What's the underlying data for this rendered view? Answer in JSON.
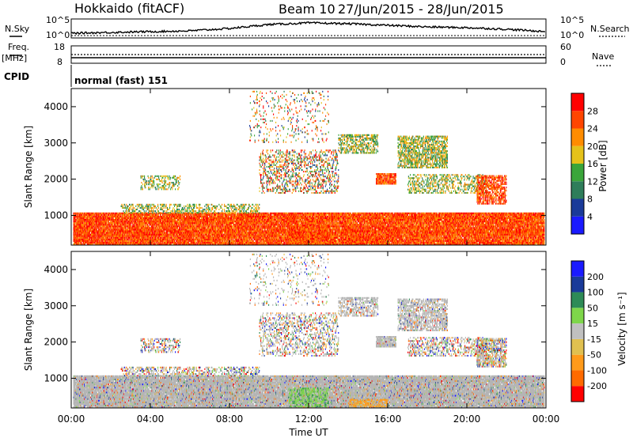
{
  "header": {
    "station": "Hokkaido (fitACF)",
    "beam": "Beam 10",
    "date_range": "27/Jun/2015 - 28/Jun/2015"
  },
  "labels": {
    "nsky": "N.Sky",
    "nsearch": "N.Search",
    "freq": "Freq.",
    "mhz": "[MHz]",
    "nave": "Nave",
    "cpid": "CPID",
    "cpid_value": "normal (fast) 151",
    "ylabel": "Slant Range [km]",
    "xlabel": "Time UT",
    "power_label": "Power [dB]",
    "velocity_label": "Velocity [m s⁻¹]"
  },
  "ticks": {
    "nsky_top": "10^5",
    "nsky_bottom": "10^0",
    "nsearch_top": "10^5",
    "nsearch_bottom": "10^0",
    "freq_top": "18",
    "freq_bottom": "8",
    "nave_top": "60",
    "nave_bottom": "0",
    "time": [
      "00:00",
      "04:00",
      "08:00",
      "12:00",
      "16:00",
      "20:00",
      "00:00"
    ],
    "range": [
      "1000",
      "2000",
      "3000",
      "4000"
    ]
  },
  "colors": {
    "power": [
      "#1a1aff",
      "#1a3a99",
      "#2e7d5a",
      "#3aa53a",
      "#e5c21a",
      "#ff8c00",
      "#ff4500",
      "#ff0000"
    ],
    "velocity": [
      "#ff0000",
      "#ff6a00",
      "#ff9a1a",
      "#e0c050",
      "#c0c0c0",
      "#7ed64a",
      "#2e8b57",
      "#1a3a99",
      "#1a1aff"
    ],
    "ground_scatter": "#b4b4b4"
  },
  "chart_data": {
    "type": "heatmap",
    "x_axis": {
      "label": "Time UT",
      "range_hours": [
        0,
        24
      ],
      "ticks": [
        "00:00",
        "04:00",
        "08:00",
        "12:00",
        "16:00",
        "20:00",
        "00:00"
      ]
    },
    "y_axis": {
      "label": "Slant Range [km]",
      "range_km": [
        180,
        4500
      ],
      "ticks": [
        1000,
        2000,
        3000,
        4000
      ]
    },
    "power_scale": {
      "label": "Power [dB]",
      "ticks": [
        4,
        8,
        12,
        16,
        20,
        24,
        28
      ]
    },
    "velocity_scale": {
      "label": "Velocity [m s⁻¹]",
      "ticks": [
        200,
        100,
        50,
        15,
        -15,
        -50,
        -100,
        -200
      ]
    },
    "nsky_profile_hours": [
      0,
      2,
      4,
      6,
      8,
      10,
      12,
      14,
      16,
      18,
      20,
      22,
      24
    ],
    "nsky_profile_level": [
      0.2,
      0.25,
      0.3,
      0.35,
      0.5,
      0.75,
      0.85,
      0.8,
      0.7,
      0.6,
      0.55,
      0.45,
      0.3
    ],
    "scatter_regions": [
      {
        "t0": 0.1,
        "t1": 23.9,
        "r0": 180,
        "r1": 1050,
        "density": 0.92,
        "power": "high",
        "velocity": "ground"
      },
      {
        "t0": 2.5,
        "t1": 9.5,
        "r0": 1050,
        "r1": 1300,
        "density": 0.35,
        "power": "mid",
        "velocity": "mixed"
      },
      {
        "t0": 3.5,
        "t1": 5.5,
        "r0": 1700,
        "r1": 2100,
        "density": 0.3,
        "power": "mid",
        "velocity": "mixed"
      },
      {
        "t0": 9.5,
        "t1": 13.5,
        "r0": 1600,
        "r1": 2800,
        "density": 0.28,
        "power": "mixed",
        "velocity": "mixed"
      },
      {
        "t0": 13.5,
        "t1": 15.5,
        "r0": 2700,
        "r1": 3200,
        "density": 0.45,
        "power": "mid",
        "velocity": "ground"
      },
      {
        "t0": 15.4,
        "t1": 16.4,
        "r0": 1850,
        "r1": 2150,
        "density": 0.8,
        "power": "high",
        "velocity": "ground"
      },
      {
        "t0": 16.5,
        "t1": 19.0,
        "r0": 2300,
        "r1": 3200,
        "density": 0.55,
        "power": "mid",
        "velocity": "ground"
      },
      {
        "t0": 17.0,
        "t1": 21.0,
        "r0": 1600,
        "r1": 2100,
        "density": 0.35,
        "power": "mid",
        "velocity": "mixed"
      },
      {
        "t0": 20.5,
        "t1": 22.0,
        "r0": 1300,
        "r1": 2100,
        "density": 0.55,
        "power": "high",
        "velocity": "mixed"
      },
      {
        "t0": 11.0,
        "t1": 13.0,
        "r0": 200,
        "r1": 700,
        "density": 0.6,
        "power": "high",
        "velocity": "positive"
      },
      {
        "t0": 14.0,
        "t1": 16.0,
        "r0": 200,
        "r1": 400,
        "density": 0.6,
        "power": "high",
        "velocity": "negative"
      },
      {
        "t0": 9.0,
        "t1": 13.0,
        "r0": 3000,
        "r1": 4400,
        "density": 0.08,
        "power": "mixed",
        "velocity": "mixed"
      }
    ]
  }
}
